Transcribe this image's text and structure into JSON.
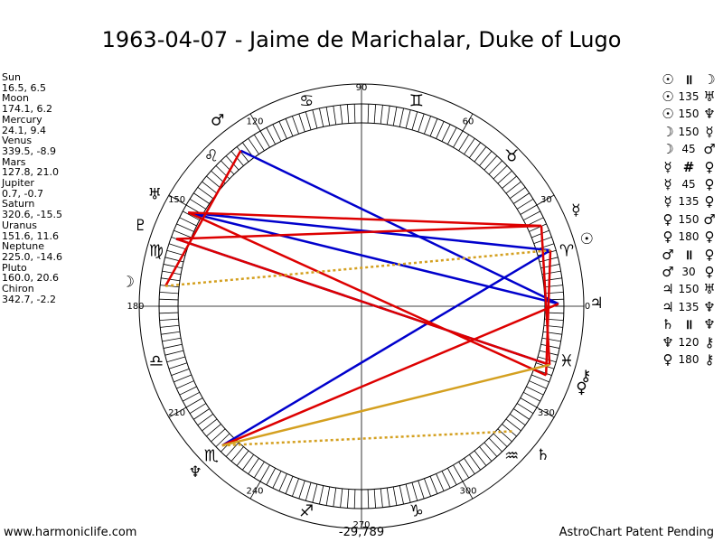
{
  "title": "1963-04-07 - Jaime de Marichalar, Duke of Lugo",
  "planets": [
    {
      "name": "Sun",
      "values": "16.5, 6.5",
      "glyph": "☉",
      "glyph_icon": "sun-icon",
      "lon": 16.5,
      "color": "#000000"
    },
    {
      "name": "Moon",
      "values": "174.1, 6.2",
      "glyph": "☽",
      "glyph_icon": "moon-icon",
      "lon": 174.1,
      "color": "#000000"
    },
    {
      "name": "Mercury",
      "values": "24.1, 9.4",
      "glyph": "☿",
      "glyph_icon": "mercury-icon",
      "lon": 24.1,
      "color": "#000000"
    },
    {
      "name": "Venus",
      "values": "339.5, -8.9",
      "glyph": "♀",
      "glyph_icon": "venus-icon",
      "lon": 339.5,
      "color": "#000000"
    },
    {
      "name": "Mars",
      "values": "127.8, 21.0",
      "glyph": "♂",
      "glyph_icon": "mars-icon",
      "lon": 127.8,
      "color": "#000000"
    },
    {
      "name": "Jupiter",
      "values": "0.7, -0.7",
      "glyph": "♃",
      "glyph_icon": "jupiter-icon",
      "lon": 0.7,
      "color": "#000000"
    },
    {
      "name": "Saturn",
      "values": "320.6, -15.5",
      "glyph": "♄",
      "glyph_icon": "saturn-icon",
      "lon": 320.6,
      "color": "#000000"
    },
    {
      "name": "Uranus",
      "values": "151.6, 11.6",
      "glyph": "♅",
      "glyph_icon": "uranus-icon",
      "lon": 151.6,
      "color": "#000000"
    },
    {
      "name": "Neptune",
      "values": "225.0, -14.6",
      "glyph": "♆",
      "glyph_icon": "neptune-icon",
      "lon": 225.0,
      "color": "#000000"
    },
    {
      "name": "Pluto",
      "values": "160.0, 20.6",
      "glyph": "♇",
      "glyph_icon": "pluto-icon",
      "lon": 160.0,
      "color": "#000000"
    },
    {
      "name": "Chiron",
      "values": "342.7, -2.2",
      "glyph": "⚷",
      "glyph_icon": "chiron-icon",
      "lon": 342.7,
      "color": "#000000"
    }
  ],
  "aspects": [
    {
      "p1": "☉",
      "sym": "॥",
      "p2": "☽"
    },
    {
      "p1": "☉",
      "sym": "135",
      "p2": "♅"
    },
    {
      "p1": "☉",
      "sym": "150",
      "p2": "♆"
    },
    {
      "p1": "☽",
      "sym": "150",
      "p2": "☿"
    },
    {
      "p1": "☽",
      "sym": "45",
      "p2": "♂"
    },
    {
      "p1": "☿",
      "sym": "#",
      "p2": "♀"
    },
    {
      "p1": "☿",
      "sym": "45",
      "p2": "♀"
    },
    {
      "p1": "☿",
      "sym": "135",
      "p2": "♀"
    },
    {
      "p1": "♀",
      "sym": "150",
      "p2": "♂"
    },
    {
      "p1": "♀",
      "sym": "180",
      "p2": "♀"
    },
    {
      "p1": "♂",
      "sym": "॥",
      "p2": "♀"
    },
    {
      "p1": "♂",
      "sym": "30",
      "p2": "♀"
    },
    {
      "p1": "♃",
      "sym": "150",
      "p2": "♅"
    },
    {
      "p1": "♃",
      "sym": "135",
      "p2": "♆"
    },
    {
      "p1": "♄",
      "sym": "॥",
      "p2": "♆"
    },
    {
      "p1": "♆",
      "sym": "120",
      "p2": "⚷"
    },
    {
      "p1": "♀",
      "sym": "180",
      "p2": "⚷"
    }
  ],
  "degree_labels": [
    {
      "text": "90",
      "deg": 90
    },
    {
      "text": "60",
      "deg": 60
    },
    {
      "text": "30",
      "deg": 30
    },
    {
      "text": "0",
      "deg": 0
    },
    {
      "text": "330",
      "deg": 330
    },
    {
      "text": "300",
      "deg": 300
    },
    {
      "text": "270",
      "deg": 270
    },
    {
      "text": "240",
      "deg": 240
    },
    {
      "text": "210",
      "deg": 210
    },
    {
      "text": "180",
      "deg": 180
    },
    {
      "text": "150",
      "deg": 150
    },
    {
      "text": "120",
      "deg": 120
    }
  ],
  "zodiac_signs": [
    {
      "glyph": "♈",
      "name": "aries-icon",
      "mid": 15
    },
    {
      "glyph": "♉",
      "name": "taurus-icon",
      "mid": 45
    },
    {
      "glyph": "♊",
      "name": "gemini-icon",
      "mid": 75
    },
    {
      "glyph": "♋",
      "name": "cancer-icon",
      "mid": 105
    },
    {
      "glyph": "♌",
      "name": "leo-icon",
      "mid": 135
    },
    {
      "glyph": "♍",
      "name": "virgo-icon",
      "mid": 165
    },
    {
      "glyph": "♎",
      "name": "libra-icon",
      "mid": 195
    },
    {
      "glyph": "♏",
      "name": "scorpio-icon",
      "mid": 225
    },
    {
      "glyph": "♐",
      "name": "sagittarius-icon",
      "mid": 255
    },
    {
      "glyph": "♑",
      "name": "capricorn-icon",
      "mid": 285
    },
    {
      "glyph": "♒",
      "name": "aquarius-icon",
      "mid": 315
    },
    {
      "glyph": "♓",
      "name": "pisces-icon",
      "mid": 345
    }
  ],
  "aspect_lines": [
    {
      "a": 127.8,
      "b": 0.7,
      "color": "#0000cc",
      "dash": false
    },
    {
      "a": 151.6,
      "b": 16.5,
      "color": "#0000cc",
      "dash": false
    },
    {
      "a": 151.6,
      "b": 0.7,
      "color": "#0000cc",
      "dash": false
    },
    {
      "a": 160.0,
      "b": 342.7,
      "color": "#0000cc",
      "dash": false
    },
    {
      "a": 225.0,
      "b": 16.5,
      "color": "#0000cc",
      "dash": false
    },
    {
      "a": 151.6,
      "b": 24.1,
      "color": "#dd0000",
      "dash": false
    },
    {
      "a": 160.0,
      "b": 24.1,
      "color": "#dd0000",
      "dash": false
    },
    {
      "a": 174.1,
      "b": 127.8,
      "color": "#dd0000",
      "dash": false
    },
    {
      "a": 160.0,
      "b": 342.7,
      "color": "#dd0000",
      "dash": false
    },
    {
      "a": 151.6,
      "b": 339.5,
      "color": "#dd0000",
      "dash": false
    },
    {
      "a": 225.0,
      "b": 0.7,
      "color": "#dd0000",
      "dash": false
    },
    {
      "a": 16.5,
      "b": 339.5,
      "color": "#dd0000",
      "dash": false
    },
    {
      "a": 24.1,
      "b": 342.7,
      "color": "#dd0000",
      "dash": false
    },
    {
      "a": 225.0,
      "b": 342.7,
      "color": "#d4a020",
      "dash": false
    },
    {
      "a": 174.1,
      "b": 16.5,
      "color": "#d4a020",
      "dash": true
    },
    {
      "a": 225.0,
      "b": 320.6,
      "color": "#d4a020",
      "dash": true
    }
  ],
  "footer": {
    "left": "www.harmoniclife.com",
    "center": "-29,789",
    "right": "AstroChart Patent Pending"
  },
  "colors": {
    "blue": "#0000cc",
    "red": "#dd0000",
    "gold": "#d4a020"
  }
}
